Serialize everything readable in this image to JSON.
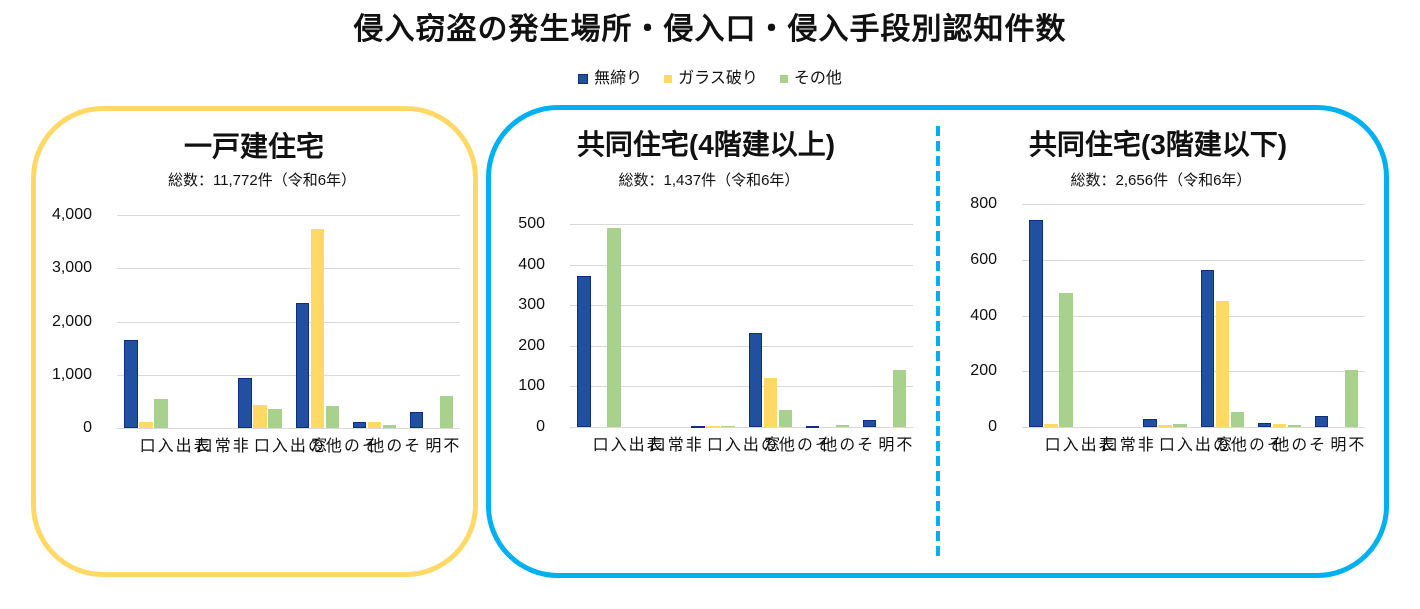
{
  "title": "侵入窃盗の発生場所・侵入口・侵入手段別認知件数",
  "legend": [
    {
      "label": "無締り",
      "color": "#2250A0"
    },
    {
      "label": "ガラス破り",
      "color": "#FFD966"
    },
    {
      "label": "その他",
      "color": "#A9D18E"
    }
  ],
  "colors": {
    "single_house_frame": "#FFD966",
    "apartment_frame": "#00B0F0",
    "gridline": "#D9D9D9",
    "blue_bar_outline": "#0E2F80"
  },
  "chart_data": [
    {
      "type": "bar",
      "title": "一戸建住宅",
      "subtitle": "総数：11,772件（令和6年）",
      "xlabel": "",
      "ylabel": "",
      "categories": [
        "表出入口",
        "非常口",
        "その他の出入口",
        "窓",
        "その他",
        "不明"
      ],
      "series": [
        {
          "name": "無締り",
          "color": "#2250A0",
          "values": [
            1660,
            0,
            940,
            2355,
            118,
            293
          ]
        },
        {
          "name": "ガラス破り",
          "color": "#FFD966",
          "values": [
            110,
            0,
            435,
            3730,
            110,
            0
          ]
        },
        {
          "name": "その他",
          "color": "#A9D18E",
          "values": [
            540,
            0,
            355,
            410,
            50,
            600
          ]
        }
      ],
      "ylim": [
        0,
        4000
      ],
      "yticks": [
        0,
        1000,
        2000,
        3000,
        4000
      ],
      "ytick_labels": [
        "0",
        "1,000",
        "2,000",
        "3,000",
        "4,000"
      ],
      "grid": true,
      "legend_position": "top"
    },
    {
      "type": "bar",
      "title": "共同住宅(4階建以上)",
      "subtitle": "総数：1,437件（令和6年）",
      "xlabel": "",
      "ylabel": "",
      "categories": [
        "表出入口",
        "非常口",
        "その他の出入口",
        "窓",
        "その他",
        "不明"
      ],
      "series": [
        {
          "name": "無締り",
          "color": "#2250A0",
          "values": [
            373,
            0,
            2,
            231,
            2,
            17
          ]
        },
        {
          "name": "ガラス破り",
          "color": "#FFD966",
          "values": [
            0,
            0,
            2,
            121,
            0,
            0
          ]
        },
        {
          "name": "その他",
          "color": "#A9D18E",
          "values": [
            489,
            0,
            2,
            42,
            4,
            140
          ]
        }
      ],
      "ylim": [
        0,
        500
      ],
      "yticks": [
        0,
        100,
        200,
        300,
        400,
        500
      ],
      "ytick_labels": [
        "0",
        "100",
        "200",
        "300",
        "400",
        "500"
      ],
      "grid": true,
      "legend_position": "top"
    },
    {
      "type": "bar",
      "title": "共同住宅(3階建以下)",
      "subtitle": "総数：2,656件（令和6年）",
      "xlabel": "",
      "ylabel": "",
      "categories": [
        "表出入口",
        "非常口",
        "その他の出入口",
        "窓",
        "その他",
        "不明"
      ],
      "series": [
        {
          "name": "無締り",
          "color": "#2250A0",
          "values": [
            742,
            0,
            30,
            563,
            15,
            41
          ]
        },
        {
          "name": "ガラス破り",
          "color": "#FFD966",
          "values": [
            9,
            0,
            7,
            452,
            12,
            0
          ]
        },
        {
          "name": "その他",
          "color": "#A9D18E",
          "values": [
            481,
            0,
            10,
            55,
            7,
            204
          ]
        }
      ],
      "ylim": [
        0,
        800
      ],
      "yticks": [
        0,
        200,
        400,
        600,
        800
      ],
      "ytick_labels": [
        "0",
        "200",
        "400",
        "600",
        "800"
      ],
      "grid": true,
      "legend_position": "top"
    }
  ]
}
